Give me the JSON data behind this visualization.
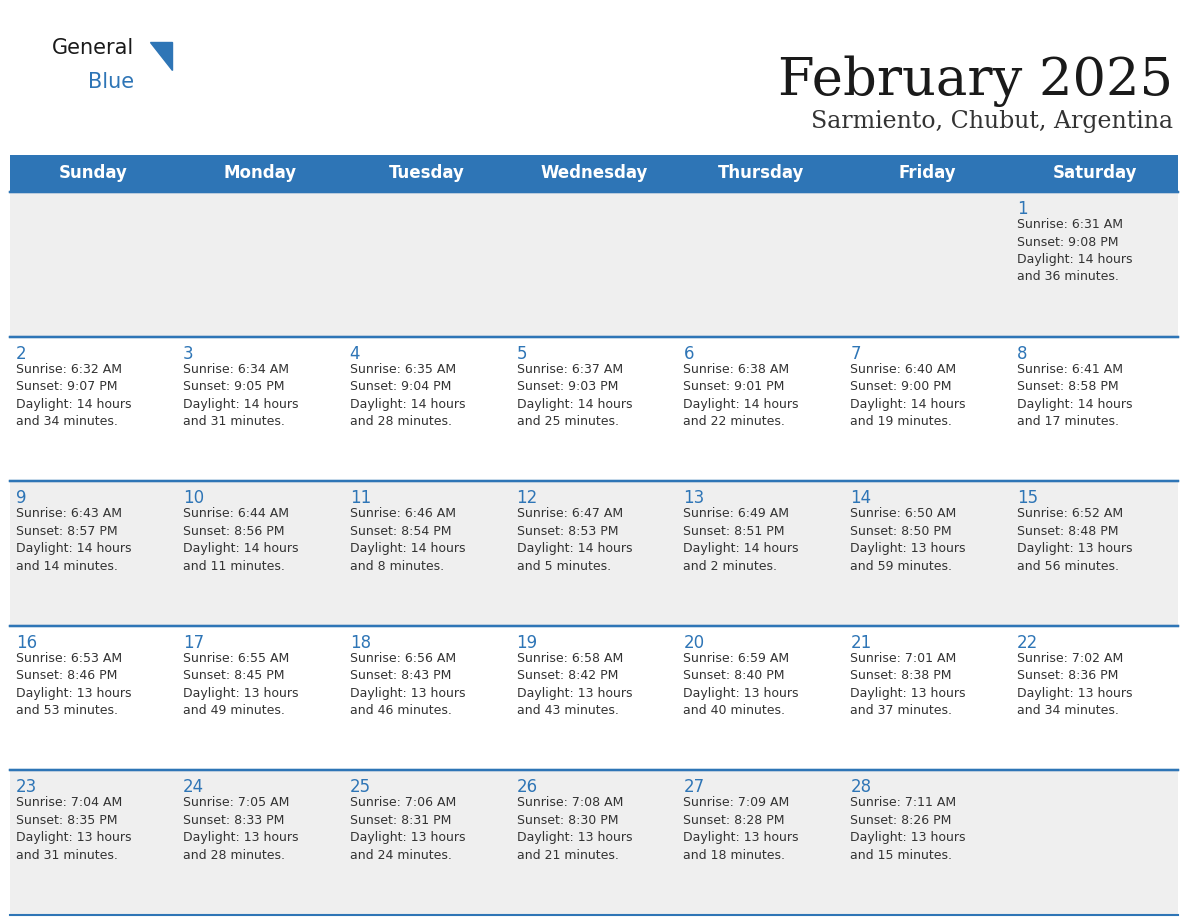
{
  "title": "February 2025",
  "subtitle": "Sarmiento, Chubut, Argentina",
  "header_bg": "#2E75B6",
  "header_text": "#FFFFFF",
  "cell_bg_week1": "#EFEFEF",
  "cell_bg_week2": "#FFFFFF",
  "cell_bg_week3": "#EFEFEF",
  "cell_bg_week4": "#FFFFFF",
  "cell_bg_week5": "#EFEFEF",
  "cell_text": "#333333",
  "day_num_color": "#2E75B6",
  "border_color": "#2E75B6",
  "days_of_week": [
    "Sunday",
    "Monday",
    "Tuesday",
    "Wednesday",
    "Thursday",
    "Friday",
    "Saturday"
  ],
  "weeks": [
    [
      {
        "day": null,
        "info": null
      },
      {
        "day": null,
        "info": null
      },
      {
        "day": null,
        "info": null
      },
      {
        "day": null,
        "info": null
      },
      {
        "day": null,
        "info": null
      },
      {
        "day": null,
        "info": null
      },
      {
        "day": 1,
        "info": "Sunrise: 6:31 AM\nSunset: 9:08 PM\nDaylight: 14 hours\nand 36 minutes."
      }
    ],
    [
      {
        "day": 2,
        "info": "Sunrise: 6:32 AM\nSunset: 9:07 PM\nDaylight: 14 hours\nand 34 minutes."
      },
      {
        "day": 3,
        "info": "Sunrise: 6:34 AM\nSunset: 9:05 PM\nDaylight: 14 hours\nand 31 minutes."
      },
      {
        "day": 4,
        "info": "Sunrise: 6:35 AM\nSunset: 9:04 PM\nDaylight: 14 hours\nand 28 minutes."
      },
      {
        "day": 5,
        "info": "Sunrise: 6:37 AM\nSunset: 9:03 PM\nDaylight: 14 hours\nand 25 minutes."
      },
      {
        "day": 6,
        "info": "Sunrise: 6:38 AM\nSunset: 9:01 PM\nDaylight: 14 hours\nand 22 minutes."
      },
      {
        "day": 7,
        "info": "Sunrise: 6:40 AM\nSunset: 9:00 PM\nDaylight: 14 hours\nand 19 minutes."
      },
      {
        "day": 8,
        "info": "Sunrise: 6:41 AM\nSunset: 8:58 PM\nDaylight: 14 hours\nand 17 minutes."
      }
    ],
    [
      {
        "day": 9,
        "info": "Sunrise: 6:43 AM\nSunset: 8:57 PM\nDaylight: 14 hours\nand 14 minutes."
      },
      {
        "day": 10,
        "info": "Sunrise: 6:44 AM\nSunset: 8:56 PM\nDaylight: 14 hours\nand 11 minutes."
      },
      {
        "day": 11,
        "info": "Sunrise: 6:46 AM\nSunset: 8:54 PM\nDaylight: 14 hours\nand 8 minutes."
      },
      {
        "day": 12,
        "info": "Sunrise: 6:47 AM\nSunset: 8:53 PM\nDaylight: 14 hours\nand 5 minutes."
      },
      {
        "day": 13,
        "info": "Sunrise: 6:49 AM\nSunset: 8:51 PM\nDaylight: 14 hours\nand 2 minutes."
      },
      {
        "day": 14,
        "info": "Sunrise: 6:50 AM\nSunset: 8:50 PM\nDaylight: 13 hours\nand 59 minutes."
      },
      {
        "day": 15,
        "info": "Sunrise: 6:52 AM\nSunset: 8:48 PM\nDaylight: 13 hours\nand 56 minutes."
      }
    ],
    [
      {
        "day": 16,
        "info": "Sunrise: 6:53 AM\nSunset: 8:46 PM\nDaylight: 13 hours\nand 53 minutes."
      },
      {
        "day": 17,
        "info": "Sunrise: 6:55 AM\nSunset: 8:45 PM\nDaylight: 13 hours\nand 49 minutes."
      },
      {
        "day": 18,
        "info": "Sunrise: 6:56 AM\nSunset: 8:43 PM\nDaylight: 13 hours\nand 46 minutes."
      },
      {
        "day": 19,
        "info": "Sunrise: 6:58 AM\nSunset: 8:42 PM\nDaylight: 13 hours\nand 43 minutes."
      },
      {
        "day": 20,
        "info": "Sunrise: 6:59 AM\nSunset: 8:40 PM\nDaylight: 13 hours\nand 40 minutes."
      },
      {
        "day": 21,
        "info": "Sunrise: 7:01 AM\nSunset: 8:38 PM\nDaylight: 13 hours\nand 37 minutes."
      },
      {
        "day": 22,
        "info": "Sunrise: 7:02 AM\nSunset: 8:36 PM\nDaylight: 13 hours\nand 34 minutes."
      }
    ],
    [
      {
        "day": 23,
        "info": "Sunrise: 7:04 AM\nSunset: 8:35 PM\nDaylight: 13 hours\nand 31 minutes."
      },
      {
        "day": 24,
        "info": "Sunrise: 7:05 AM\nSunset: 8:33 PM\nDaylight: 13 hours\nand 28 minutes."
      },
      {
        "day": 25,
        "info": "Sunrise: 7:06 AM\nSunset: 8:31 PM\nDaylight: 13 hours\nand 24 minutes."
      },
      {
        "day": 26,
        "info": "Sunrise: 7:08 AM\nSunset: 8:30 PM\nDaylight: 13 hours\nand 21 minutes."
      },
      {
        "day": 27,
        "info": "Sunrise: 7:09 AM\nSunset: 8:28 PM\nDaylight: 13 hours\nand 18 minutes."
      },
      {
        "day": 28,
        "info": "Sunrise: 7:11 AM\nSunset: 8:26 PM\nDaylight: 13 hours\nand 15 minutes."
      },
      {
        "day": null,
        "info": null
      }
    ]
  ],
  "title_fontsize": 38,
  "subtitle_fontsize": 17,
  "header_fontsize": 12,
  "day_num_fontsize": 12,
  "info_fontsize": 9,
  "logo_general_fontsize": 15,
  "logo_blue_fontsize": 15
}
